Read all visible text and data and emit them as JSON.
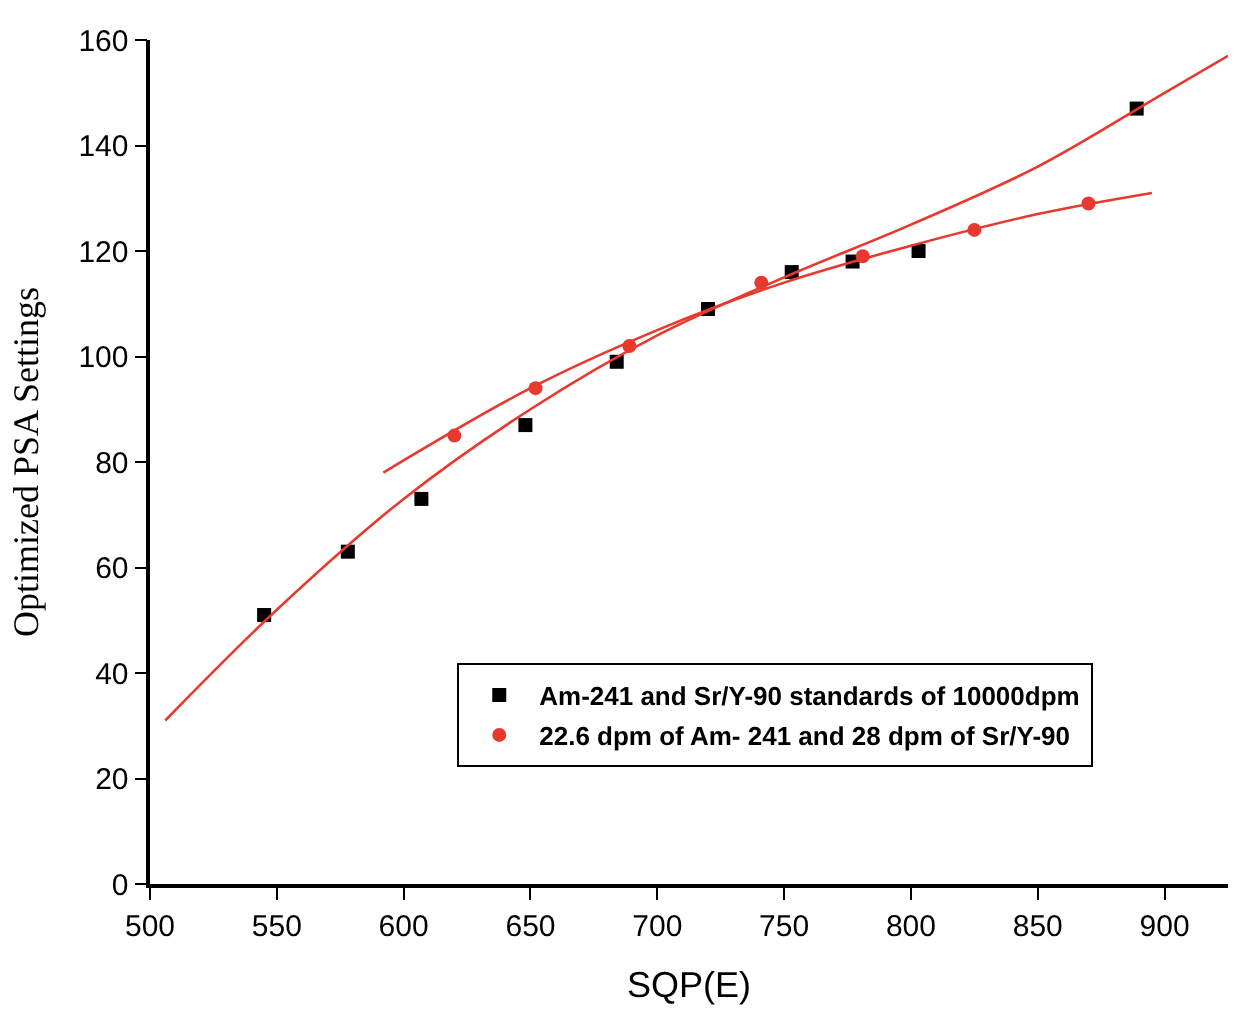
{
  "chart_data": {
    "type": "scatter",
    "xlabel": "SQP(E)",
    "ylabel": "Optimized PSA Settings",
    "xlim": [
      500,
      925
    ],
    "xticks": [
      500,
      550,
      600,
      650,
      700,
      750,
      800,
      850,
      900
    ],
    "ylim": [
      0,
      160
    ],
    "yticks": [
      0,
      20,
      40,
      60,
      80,
      100,
      120,
      140,
      160
    ],
    "grid": false,
    "legend": "bottom",
    "series": [
      {
        "name": "Am-241 and Sr/Y-90 standards of 10000dpm",
        "color": "#000000",
        "marker": "square",
        "x": [
          545,
          578,
          607,
          648,
          684,
          720,
          753,
          777,
          803,
          889
        ],
        "values": [
          51,
          63,
          73,
          87,
          99,
          109,
          116,
          118,
          120,
          147
        ]
      },
      {
        "name": "22.6 dpm of Am- 241 and 28 dpm of Sr/Y-90",
        "color": "#e8392e",
        "marker": "circle",
        "x": [
          620,
          652,
          689,
          741,
          781,
          825,
          870
        ],
        "values": [
          85,
          94,
          102,
          114,
          119,
          124,
          129
        ]
      },
      {
        "type": "line",
        "color": "#e8392e",
        "marker": "none",
        "line_style": "solid",
        "x": [
          506,
          550,
          600,
          650,
          700,
          750,
          800,
          850,
          900,
          925
        ],
        "values": [
          31,
          52,
          73,
          90,
          104,
          115,
          125,
          136,
          150,
          157
        ]
      },
      {
        "type": "line",
        "color": "#e8392e",
        "marker": "none",
        "line_style": "solid",
        "x": [
          592,
          650,
          700,
          750,
          800,
          850,
          895
        ],
        "values": [
          78,
          94,
          105,
          114,
          121,
          127,
          131
        ]
      }
    ]
  }
}
